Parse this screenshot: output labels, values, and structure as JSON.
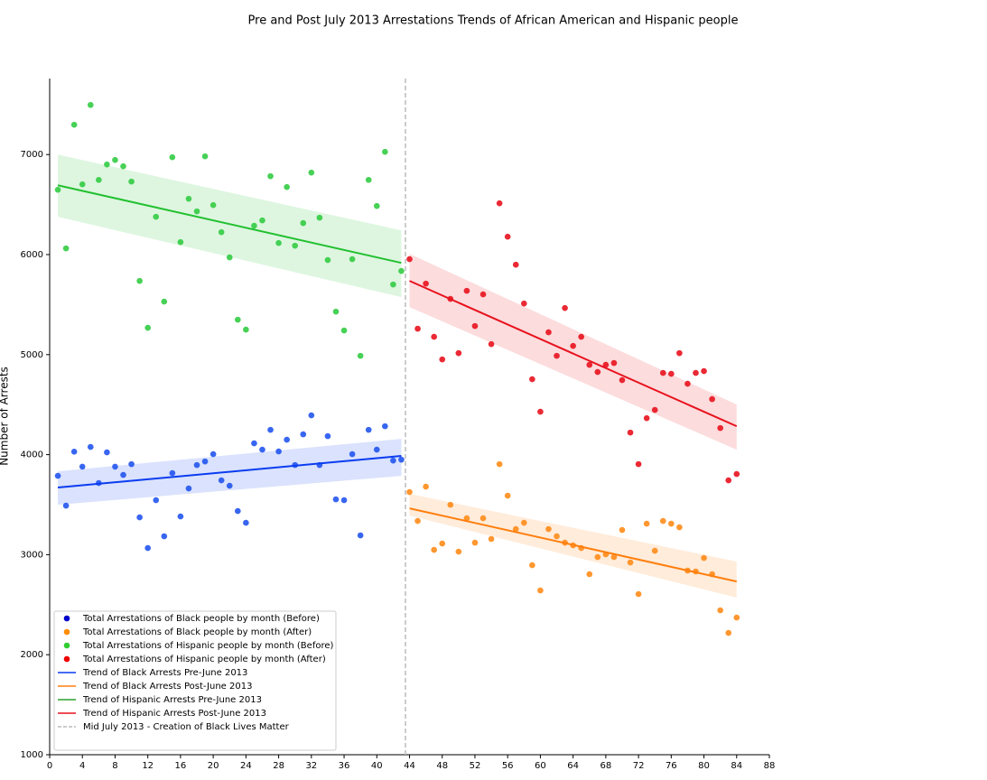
{
  "chart_data": {
    "type": "scatter",
    "title": "Pre and Post July 2013 Arrestations Trends of African American and Hispanic people",
    "y_label": "Number of Arrests",
    "xlim": [
      0,
      88
    ],
    "ylim": [
      1000,
      7760
    ],
    "xticks": [
      0,
      4,
      8,
      12,
      16,
      20,
      24,
      28,
      32,
      36,
      40,
      44,
      48,
      52,
      56,
      60,
      64,
      68,
      72,
      76,
      80,
      84,
      88
    ],
    "yticks": [
      1000,
      2000,
      3000,
      4000,
      5000,
      6000,
      7000
    ],
    "legend": "lower left",
    "series": [
      {
        "name": "Total Arrestations of Black people by month (Before)",
        "color": "#2255ee",
        "legend_color": "#0000cc",
        "x": [
          1,
          2,
          3,
          4,
          5,
          6,
          7,
          8,
          9,
          10,
          11,
          12,
          13,
          14,
          15,
          16,
          17,
          18,
          19,
          20,
          21,
          22,
          23,
          24,
          25,
          26,
          27,
          28,
          29,
          30,
          31,
          32,
          33,
          34,
          35,
          36,
          37,
          38,
          39,
          40,
          41,
          42,
          43
        ],
        "values": [
          3788,
          3490,
          4030,
          3880,
          4077,
          3716,
          4023,
          3880,
          3797,
          3905,
          3373,
          3066,
          3545,
          3184,
          3815,
          3382,
          3662,
          3896,
          3932,
          4005,
          3743,
          3689,
          3436,
          3319,
          4113,
          4050,
          4248,
          4032,
          4149,
          3896,
          4203,
          4393,
          3896,
          4185,
          3553,
          3545,
          4005,
          3193,
          4248,
          4050,
          4284,
          3941,
          3950
        ]
      },
      {
        "name": "Total Arrestations of Black people by month (After)",
        "color": "#ff8c1a",
        "legend_color": "#ff8c00",
        "x": [
          44,
          45,
          46,
          47,
          48,
          49,
          50,
          51,
          52,
          53,
          54,
          55,
          56,
          57,
          58,
          59,
          60,
          61,
          62,
          63,
          64,
          65,
          66,
          67,
          68,
          69,
          70,
          71,
          72,
          73,
          74,
          75,
          76,
          77,
          78,
          79,
          80,
          81,
          82,
          83,
          84
        ],
        "values": [
          3626,
          3337,
          3680,
          3048,
          3111,
          3499,
          3030,
          3364,
          3120,
          3364,
          3157,
          3905,
          3590,
          3256,
          3319,
          2895,
          2642,
          3256,
          3184,
          3120,
          3093,
          3066,
          2805,
          2976,
          3003,
          2976,
          3247,
          2922,
          2606,
          3310,
          3039,
          3337,
          3310,
          3274,
          2841,
          2832,
          2967,
          2805,
          2444,
          2218,
          2371
        ]
      },
      {
        "name": "Total Arrestations of Hispanic people by month (Before)",
        "color": "#33cc44",
        "legend_color": "#32cd32",
        "x": [
          1,
          2,
          3,
          4,
          5,
          6,
          7,
          8,
          9,
          10,
          11,
          12,
          13,
          14,
          15,
          16,
          17,
          18,
          19,
          20,
          21,
          22,
          23,
          24,
          25,
          26,
          27,
          28,
          29,
          30,
          31,
          32,
          33,
          34,
          35,
          36,
          37,
          38,
          39,
          40,
          41,
          42,
          43
        ],
        "values": [
          6648,
          6062,
          7298,
          6702,
          7496,
          6747,
          6901,
          6946,
          6883,
          6730,
          5737,
          5268,
          6378,
          5530,
          6973,
          6125,
          6558,
          6432,
          6982,
          6495,
          6224,
          5972,
          5349,
          5250,
          6288,
          6342,
          6784,
          6116,
          6675,
          6089,
          6315,
          6820,
          6369,
          5945,
          5430,
          5241,
          5954,
          4988,
          6747,
          6486,
          7027,
          5701,
          5836
        ]
      },
      {
        "name": "Total Arrestations of Hispanic people by month (After)",
        "color": "#e8121e",
        "legend_color": "#ee0000",
        "x": [
          44,
          45,
          46,
          47,
          48,
          49,
          50,
          51,
          52,
          53,
          54,
          55,
          56,
          57,
          58,
          59,
          60,
          61,
          62,
          63,
          64,
          65,
          66,
          67,
          68,
          69,
          70,
          71,
          72,
          73,
          74,
          75,
          76,
          77,
          78,
          79,
          80,
          81,
          82,
          83,
          84
        ],
        "values": [
          5954,
          5259,
          5710,
          5178,
          4952,
          5557,
          5015,
          5638,
          5286,
          5602,
          5105,
          6513,
          6179,
          5899,
          5511,
          4754,
          4429,
          5223,
          4988,
          5466,
          5087,
          5178,
          4898,
          4826,
          4898,
          4916,
          4745,
          4221,
          3905,
          4365,
          4447,
          4817,
          4808,
          5015,
          4709,
          4817,
          4835,
          4555,
          4266,
          3743,
          3806
        ]
      }
    ],
    "trends": [
      {
        "name": "Trend of Black Arrests Pre-June 2013",
        "color": "#0a3cf0",
        "x": [
          1,
          43
        ],
        "values": [
          3671,
          3987
        ],
        "lower": [
          3499,
          3788
        ],
        "upper": [
          3833,
          4158
        ]
      },
      {
        "name": "Trend of Black Arrests Post-June 2013",
        "color": "#ff7f0e",
        "x": [
          44,
          84
        ],
        "values": [
          3463,
          2732
        ],
        "lower": [
          3391,
          2570
        ],
        "upper": [
          3608,
          2931
        ]
      },
      {
        "name": "Trend of Hispanic Arrests Pre-June 2013",
        "color": "#22c030",
        "legend_color": "#2ca02c",
        "x": [
          1,
          43
        ],
        "values": [
          6693,
          5917
        ],
        "lower": [
          6378,
          5575
        ],
        "upper": [
          7000,
          6242
        ]
      },
      {
        "name": "Trend of Hispanic Arrests Post-June 2013",
        "color": "#e8121e",
        "x": [
          44,
          84
        ],
        "values": [
          5737,
          4284
        ],
        "lower": [
          5475,
          4050
        ],
        "upper": [
          6008,
          4501
        ]
      }
    ],
    "vline": {
      "name": "Mid July 2013 - Creation of Black Lives Matter",
      "x": 43.5,
      "color": "#bbbbbb"
    }
  }
}
